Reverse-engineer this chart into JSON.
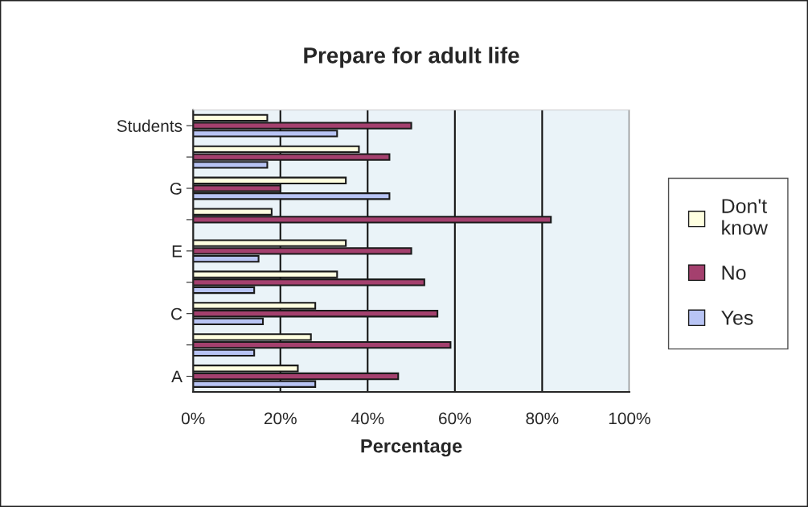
{
  "chart_data": {
    "type": "bar",
    "orientation": "horizontal",
    "title": "Prepare for adult life",
    "xlabel": "Percentage",
    "categories": [
      "Students",
      null,
      "G",
      null,
      "E",
      null,
      "C",
      null,
      "A"
    ],
    "series": [
      {
        "name": "Don't know",
        "color": "#ffffe0",
        "values": [
          17,
          38,
          35,
          18,
          35,
          33,
          28,
          27,
          24
        ]
      },
      {
        "name": "No",
        "color": "#a4406e",
        "values": [
          50,
          45,
          20,
          82,
          50,
          53,
          56,
          59,
          47
        ]
      },
      {
        "name": "Yes",
        "color": "#b8c4f4",
        "values": [
          33,
          17,
          45,
          null,
          15,
          14,
          16,
          14,
          28
        ]
      }
    ],
    "xlim": [
      0,
      100
    ],
    "xticks": [
      {
        "value": 0,
        "label": "0%"
      },
      {
        "value": 20,
        "label": "20%"
      },
      {
        "value": 40,
        "label": "40%"
      },
      {
        "value": 60,
        "label": "60%"
      },
      {
        "value": 80,
        "label": "80%"
      },
      {
        "value": 100,
        "label": "100%"
      }
    ],
    "grid": "x",
    "legend": "right"
  }
}
